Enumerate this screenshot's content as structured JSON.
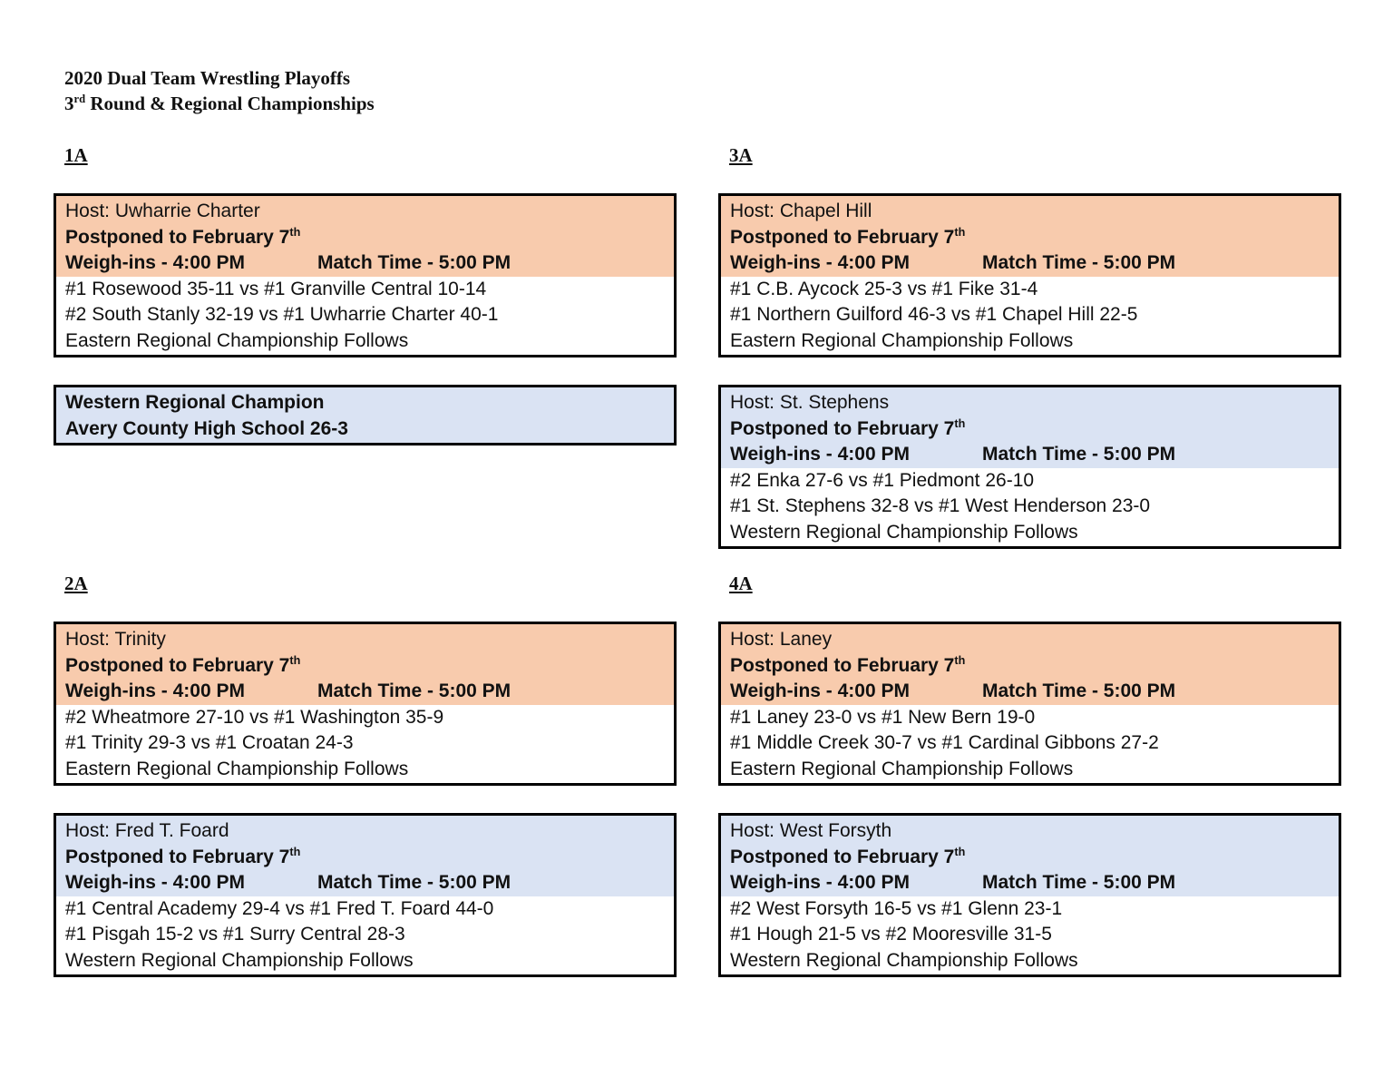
{
  "header": {
    "title": "2020 Dual Team Wrestling Playoffs",
    "subtitle_number": "3",
    "subtitle_suffix": "rd",
    "subtitle_rest": "Round & Regional Championships"
  },
  "sections": [
    {
      "label": "1A",
      "boxes": [
        {
          "color": "#f8cbad",
          "host": "Host:  Uwharrie Charter",
          "postponed": "Postponed to February 7",
          "postponed_suffix": "th",
          "weighins": "Weigh-ins - 4:00 PM",
          "match_time": "Match Time - 5:00 PM",
          "matches": [
            "#1 Rosewood 35-11 vs #1 Granville Central 10-14",
            "#2 South Stanly 32-19 vs #1 Uwharrie Charter 40-1"
          ],
          "follows": "Eastern Regional Championship Follows"
        },
        {
          "color": "#dae3f3",
          "champion": [
            "Western Regional Champion",
            "Avery County High School 26-3"
          ]
        }
      ]
    },
    {
      "label": "3A",
      "boxes": [
        {
          "color": "#f8cbad",
          "host": "Host:  Chapel Hill",
          "postponed": "Postponed to February 7",
          "postponed_suffix": "th",
          "weighins": "Weigh-ins - 4:00 PM",
          "match_time": "Match Time - 5:00 PM",
          "matches": [
            "#1 C.B. Aycock 25-3 vs #1 Fike 31-4",
            "#1 Northern Guilford 46-3 vs #1 Chapel Hill 22-5"
          ],
          "follows": "Eastern Regional Championship Follows"
        },
        {
          "color": "#dae3f3",
          "host": "Host: St. Stephens",
          "postponed": "Postponed to February 7",
          "postponed_suffix": "th",
          "weighins": "Weigh-ins - 4:00 PM",
          "match_time": "Match Time - 5:00 PM",
          "matches": [
            "#2 Enka 27-6 vs #1 Piedmont 26-10",
            "#1 St. Stephens 32-8 vs #1 West Henderson 23-0"
          ],
          "follows": "Western Regional Championship Follows"
        }
      ]
    },
    {
      "label": "2A",
      "boxes": [
        {
          "color": "#f8cbad",
          "host": "Host: Trinity",
          "postponed": "Postponed to February 7",
          "postponed_suffix": "th",
          "weighins": "Weigh-ins - 4:00 PM",
          "match_time": "Match Time - 5:00 PM",
          "matches": [
            "#2 Wheatmore 27-10 vs #1 Washington 35-9",
            "#1 Trinity 29-3 vs #1 Croatan 24-3"
          ],
          "follows": "Eastern Regional Championship Follows"
        },
        {
          "color": "#dae3f3",
          "host": "Host:  Fred T. Foard",
          "postponed": "Postponed to February 7",
          "postponed_suffix": "th",
          "weighins": "Weigh-ins - 4:00 PM",
          "match_time": "Match Time - 5:00 PM",
          "matches": [
            "#1 Central Academy 29-4 vs #1 Fred T. Foard 44-0",
            "#1 Pisgah 15-2 vs #1 Surry Central 28-3"
          ],
          "follows": "Western Regional Championship Follows"
        }
      ]
    },
    {
      "label": "4A",
      "boxes": [
        {
          "color": "#f8cbad",
          "host": "Host:  Laney",
          "postponed": "Postponed to February 7",
          "postponed_suffix": "th",
          "weighins": "Weigh-ins - 4:00 PM",
          "match_time": "Match Time - 5:00 PM",
          "matches": [
            "#1 Laney 23-0 vs #1 New Bern 19-0",
            "#1 Middle Creek 30-7 vs #1 Cardinal Gibbons 27-2"
          ],
          "follows": "Eastern Regional Championship Follows"
        },
        {
          "color": "#dae3f3",
          "host": "Host: West Forsyth",
          "postponed": "Postponed to February 7",
          "postponed_suffix": "th",
          "weighins": "Weigh-ins - 4:00 PM",
          "match_time": "Match Time - 5:00 PM",
          "matches": [
            "#2 West Forsyth 16-5 vs #1 Glenn 23-1",
            "#1 Hough 21-5 vs #2 Mooresville 31-5"
          ],
          "follows": "Western Regional Championship Follows"
        }
      ]
    }
  ]
}
